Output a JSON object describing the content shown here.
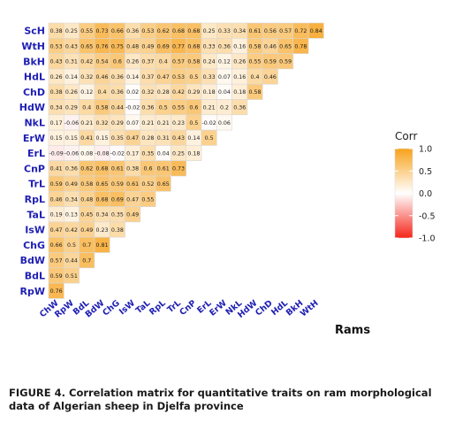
{
  "figure_caption": "FIGURE 4. Correlation matrix for quantitative traits on ram morphological data of Algerian sheep in Djelfa province",
  "chart_data": {
    "type": "heatmap",
    "annotation": "Rams",
    "legend": {
      "title": "Corr",
      "placement": "right",
      "ticks": [
        "1.0",
        "0.5",
        "0.0",
        "-0.5",
        "-1.0"
      ],
      "tick_values": [
        1.0,
        0.5,
        0.0,
        -0.5,
        -1.0
      ]
    },
    "colors": {
      "positive": "#f7a21b",
      "neutral": "#ffffff",
      "negative": "#f5251a",
      "label": "#1f1fb4",
      "grid": "#d8d8d8"
    },
    "row_labels": [
      "ScH",
      "WtH",
      "BkH",
      "HdL",
      "ChD",
      "HdW",
      "NkL",
      "ErW",
      "ErL",
      "CnP",
      "TrL",
      "RpL",
      "TaL",
      "IsW",
      "ChG",
      "BdW",
      "BdL",
      "RpW"
    ],
    "col_labels": [
      "ChW",
      "RpW",
      "BdL",
      "BdW",
      "ChG",
      "IsW",
      "TaL",
      "RpL",
      "TrL",
      "CnP",
      "ErL",
      "ErW",
      "NkL",
      "HdW",
      "ChD",
      "HdL",
      "BkH",
      "WtH"
    ],
    "values": [
      [
        "0.38",
        "0.25",
        "0.55",
        "0.73",
        "0.66",
        "0.36",
        "0.53",
        "0.62",
        "0.68",
        "0.68",
        "0.25",
        "0.33",
        "0.34",
        "0.61",
        "0.56",
        "0.57",
        "0.72",
        "0.84"
      ],
      [
        "0.53",
        "0.43",
        "0.65",
        "0.76",
        "0.75",
        "0.48",
        "0.49",
        "0.69",
        "0.77",
        "0.68",
        "0.33",
        "0.36",
        "0.16",
        "0.58",
        "0.46",
        "0.65",
        "0.78"
      ],
      [
        "0.43",
        "0.31",
        "0.42",
        "0.54",
        "0.6",
        "0.26",
        "0.37",
        "0.4",
        "0.57",
        "0.58",
        "0.24",
        "0.12",
        "0.26",
        "0.55",
        "0.59",
        "0.59"
      ],
      [
        "0.26",
        "0.14",
        "0.32",
        "0.46",
        "0.36",
        "0.14",
        "0.37",
        "0.47",
        "0.53",
        "0.5",
        "0.33",
        "0.07",
        "0.16",
        "0.4",
        "0.46"
      ],
      [
        "0.38",
        "0.26",
        "0.12",
        "0.4",
        "0.36",
        "0.02",
        "0.32",
        "0.28",
        "0.42",
        "0.29",
        "0.18",
        "0.04",
        "0.18",
        "0.58"
      ],
      [
        "0.34",
        "0.29",
        "0.4",
        "0.58",
        "0.44",
        "-0.02",
        "0.36",
        "0.5",
        "0.55",
        "0.6",
        "0.21",
        "0.2",
        "0.36"
      ],
      [
        "0.17",
        "-0.06",
        "0.21",
        "0.32",
        "0.29",
        "0.07",
        "0.21",
        "0.21",
        "0.23",
        "0.5",
        "-0.02",
        "0.06"
      ],
      [
        "0.15",
        "0.15",
        "0.41",
        "0.15",
        "0.35",
        "0.47",
        "0.28",
        "0.31",
        "0.43",
        "0.14",
        "0.5"
      ],
      [
        "-0.09",
        "-0.06",
        "0.08",
        "-0.08",
        "-0.02",
        "0.17",
        "0.35",
        "0.04",
        "0.25",
        "0.18"
      ],
      [
        "0.41",
        "0.36",
        "0.62",
        "0.68",
        "0.61",
        "0.38",
        "0.6",
        "0.61",
        "0.73"
      ],
      [
        "0.59",
        "0.49",
        "0.58",
        "0.65",
        "0.59",
        "0.61",
        "0.52",
        "0.65"
      ],
      [
        "0.46",
        "0.34",
        "0.48",
        "0.68",
        "0.69",
        "0.47",
        "0.55"
      ],
      [
        "0.19",
        "0.13",
        "0.45",
        "0.34",
        "0.35",
        "0.49"
      ],
      [
        "0.47",
        "0.42",
        "0.49",
        "0.23",
        "0.38"
      ],
      [
        "0.66",
        "0.5",
        "0.7",
        "0.81"
      ],
      [
        "0.57",
        "0.44",
        "0.7"
      ],
      [
        "0.59",
        "0.51"
      ],
      [
        "0.76"
      ]
    ]
  }
}
